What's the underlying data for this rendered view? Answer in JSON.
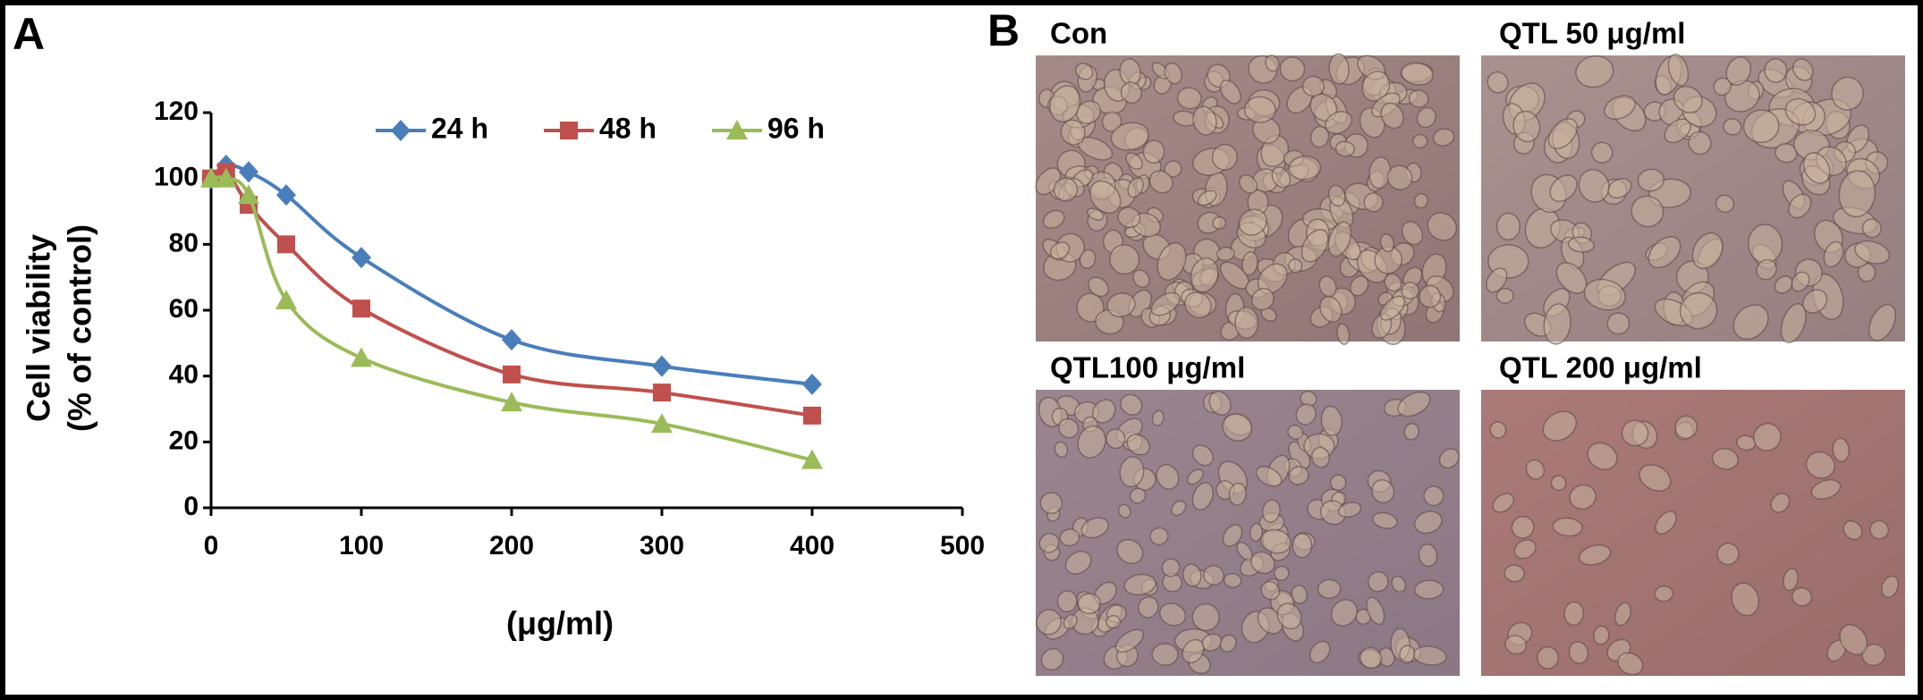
{
  "chart_data": {
    "type": "line",
    "x": [
      0,
      10,
      25,
      50,
      100,
      200,
      300,
      400
    ],
    "series": [
      {
        "name": "24 h",
        "color": "#4a7ebb",
        "marker": "diamond",
        "values": [
          100,
          104,
          102,
          95,
          76,
          51,
          43,
          37.5
        ]
      },
      {
        "name": "48 h",
        "color": "#c0504d",
        "marker": "square",
        "values": [
          100,
          102,
          92,
          80,
          60.5,
          40.5,
          35,
          28
        ]
      },
      {
        "name": "96 h",
        "color": "#9bbb59",
        "marker": "triangle",
        "values": [
          100,
          100,
          95,
          63,
          45.5,
          32,
          25.5,
          14.5
        ]
      }
    ],
    "ylabel": [
      "Cell viability",
      "(% of control)"
    ],
    "xlabel": "(μg/ml)",
    "xlim": [
      0,
      500
    ],
    "xticks": [
      0,
      100,
      200,
      300,
      400,
      500
    ],
    "ylim": [
      0,
      120
    ],
    "yticks": [
      0,
      20,
      40,
      60,
      80,
      100,
      120
    ],
    "grid": false,
    "legend": "top"
  },
  "panels": [
    "A",
    "B"
  ],
  "images": [
    {
      "label": "Con"
    },
    {
      "label": "QTL 50 μg/ml"
    },
    {
      "label": "QTL100 μg/ml"
    },
    {
      "label": "QTL 200 μg/ml"
    }
  ]
}
